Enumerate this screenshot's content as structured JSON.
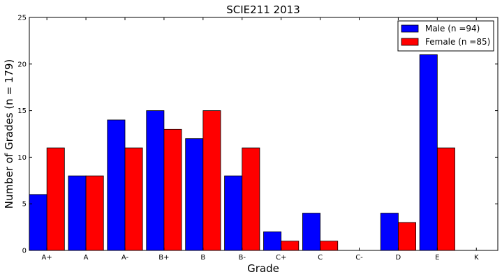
{
  "chart_data": {
    "type": "bar",
    "title": "SCIE211 2013",
    "xlabel": "Grade",
    "ylabel": "Number of Grades (n = 179)",
    "categories": [
      "A+",
      "A",
      "A-",
      "B+",
      "B",
      "B-",
      "C+",
      "C",
      "C-",
      "D",
      "E",
      "K"
    ],
    "ylim": [
      0,
      25
    ],
    "yticks": [
      0,
      5,
      10,
      15,
      20,
      25
    ],
    "grid": false,
    "legend_position": "top-right",
    "series": [
      {
        "name": "Male (n =94)",
        "color": "#0000ff",
        "values": [
          6,
          8,
          14,
          15,
          12,
          8,
          2,
          4,
          0,
          4,
          21,
          0
        ]
      },
      {
        "name": "Female (n =85)",
        "color": "#ff0000",
        "values": [
          11,
          8,
          11,
          13,
          15,
          11,
          1,
          1,
          0,
          3,
          11,
          0
        ]
      }
    ]
  }
}
